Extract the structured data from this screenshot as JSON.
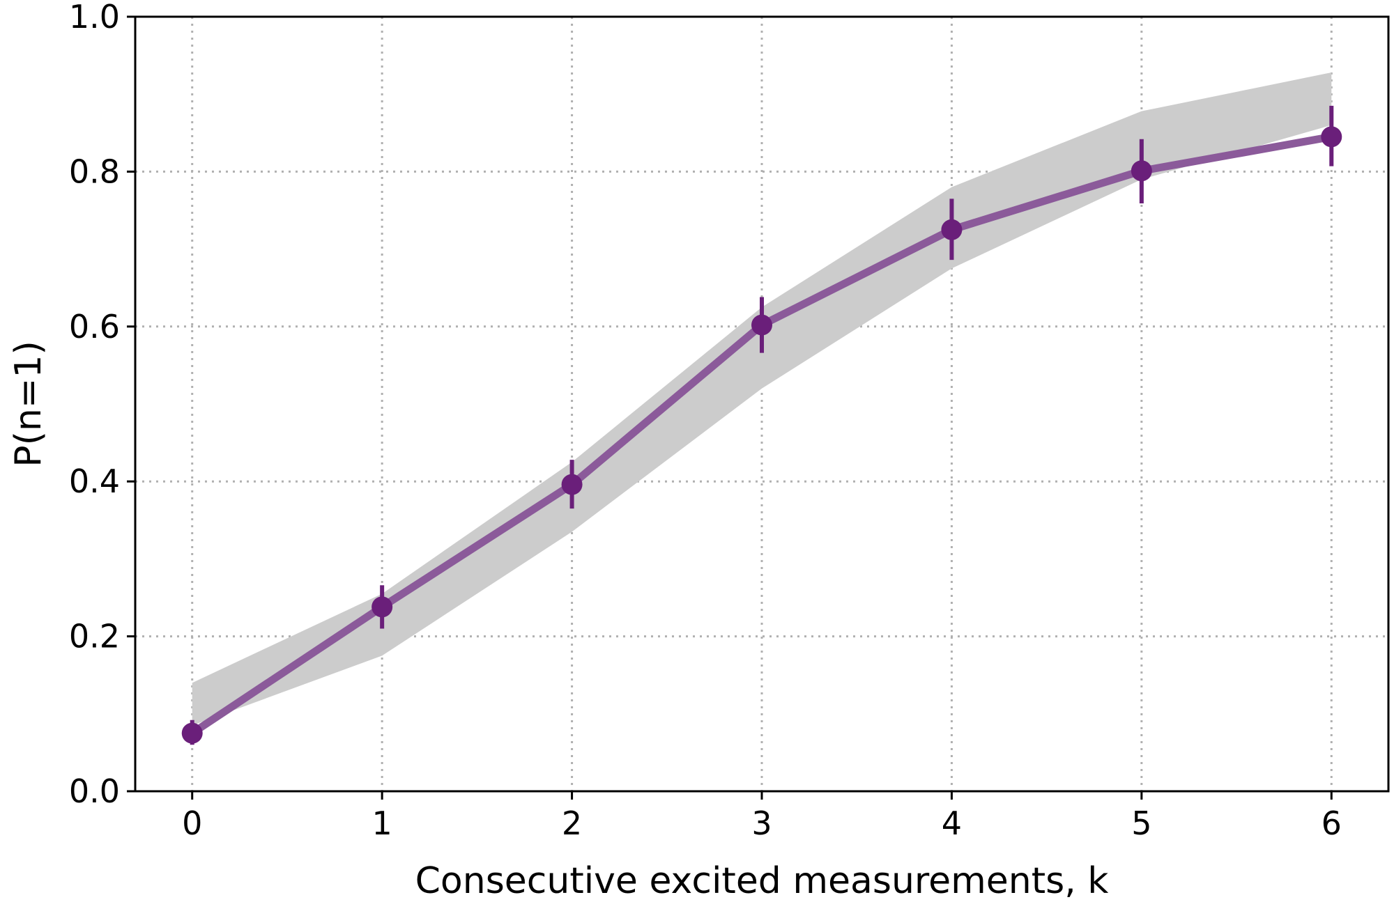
{
  "chart_data": {
    "type": "line",
    "xlabel": "Consecutive excited measurements, k",
    "ylabel": "P(n=1)",
    "xlim": [
      -0.3,
      6.3
    ],
    "ylim": [
      0.0,
      1.0
    ],
    "xticks": [
      "0",
      "1",
      "2",
      "3",
      "4",
      "5",
      "6"
    ],
    "yticks": [
      "0.0",
      "0.2",
      "0.4",
      "0.6",
      "0.8",
      "1.0"
    ],
    "grid": true,
    "series": [
      {
        "x": [
          0,
          1,
          2,
          3,
          4,
          5,
          6
        ],
        "y": [
          0.075,
          0.238,
          0.396,
          0.602,
          0.725,
          0.801,
          0.845
        ],
        "yerr_low": [
          0.06,
          0.21,
          0.365,
          0.566,
          0.686,
          0.759,
          0.807
        ],
        "yerr_high": [
          0.092,
          0.266,
          0.428,
          0.638,
          0.765,
          0.842,
          0.885
        ],
        "color": "#6a1f7a",
        "line_color": "#8b5a9a"
      }
    ],
    "band": {
      "x": [
        0,
        1,
        2,
        3,
        4,
        5,
        6
      ],
      "lower": [
        0.085,
        0.175,
        0.335,
        0.52,
        0.675,
        0.79,
        0.86
      ],
      "upper": [
        0.14,
        0.255,
        0.425,
        0.625,
        0.78,
        0.878,
        0.928
      ],
      "color": "#cccccc"
    }
  }
}
